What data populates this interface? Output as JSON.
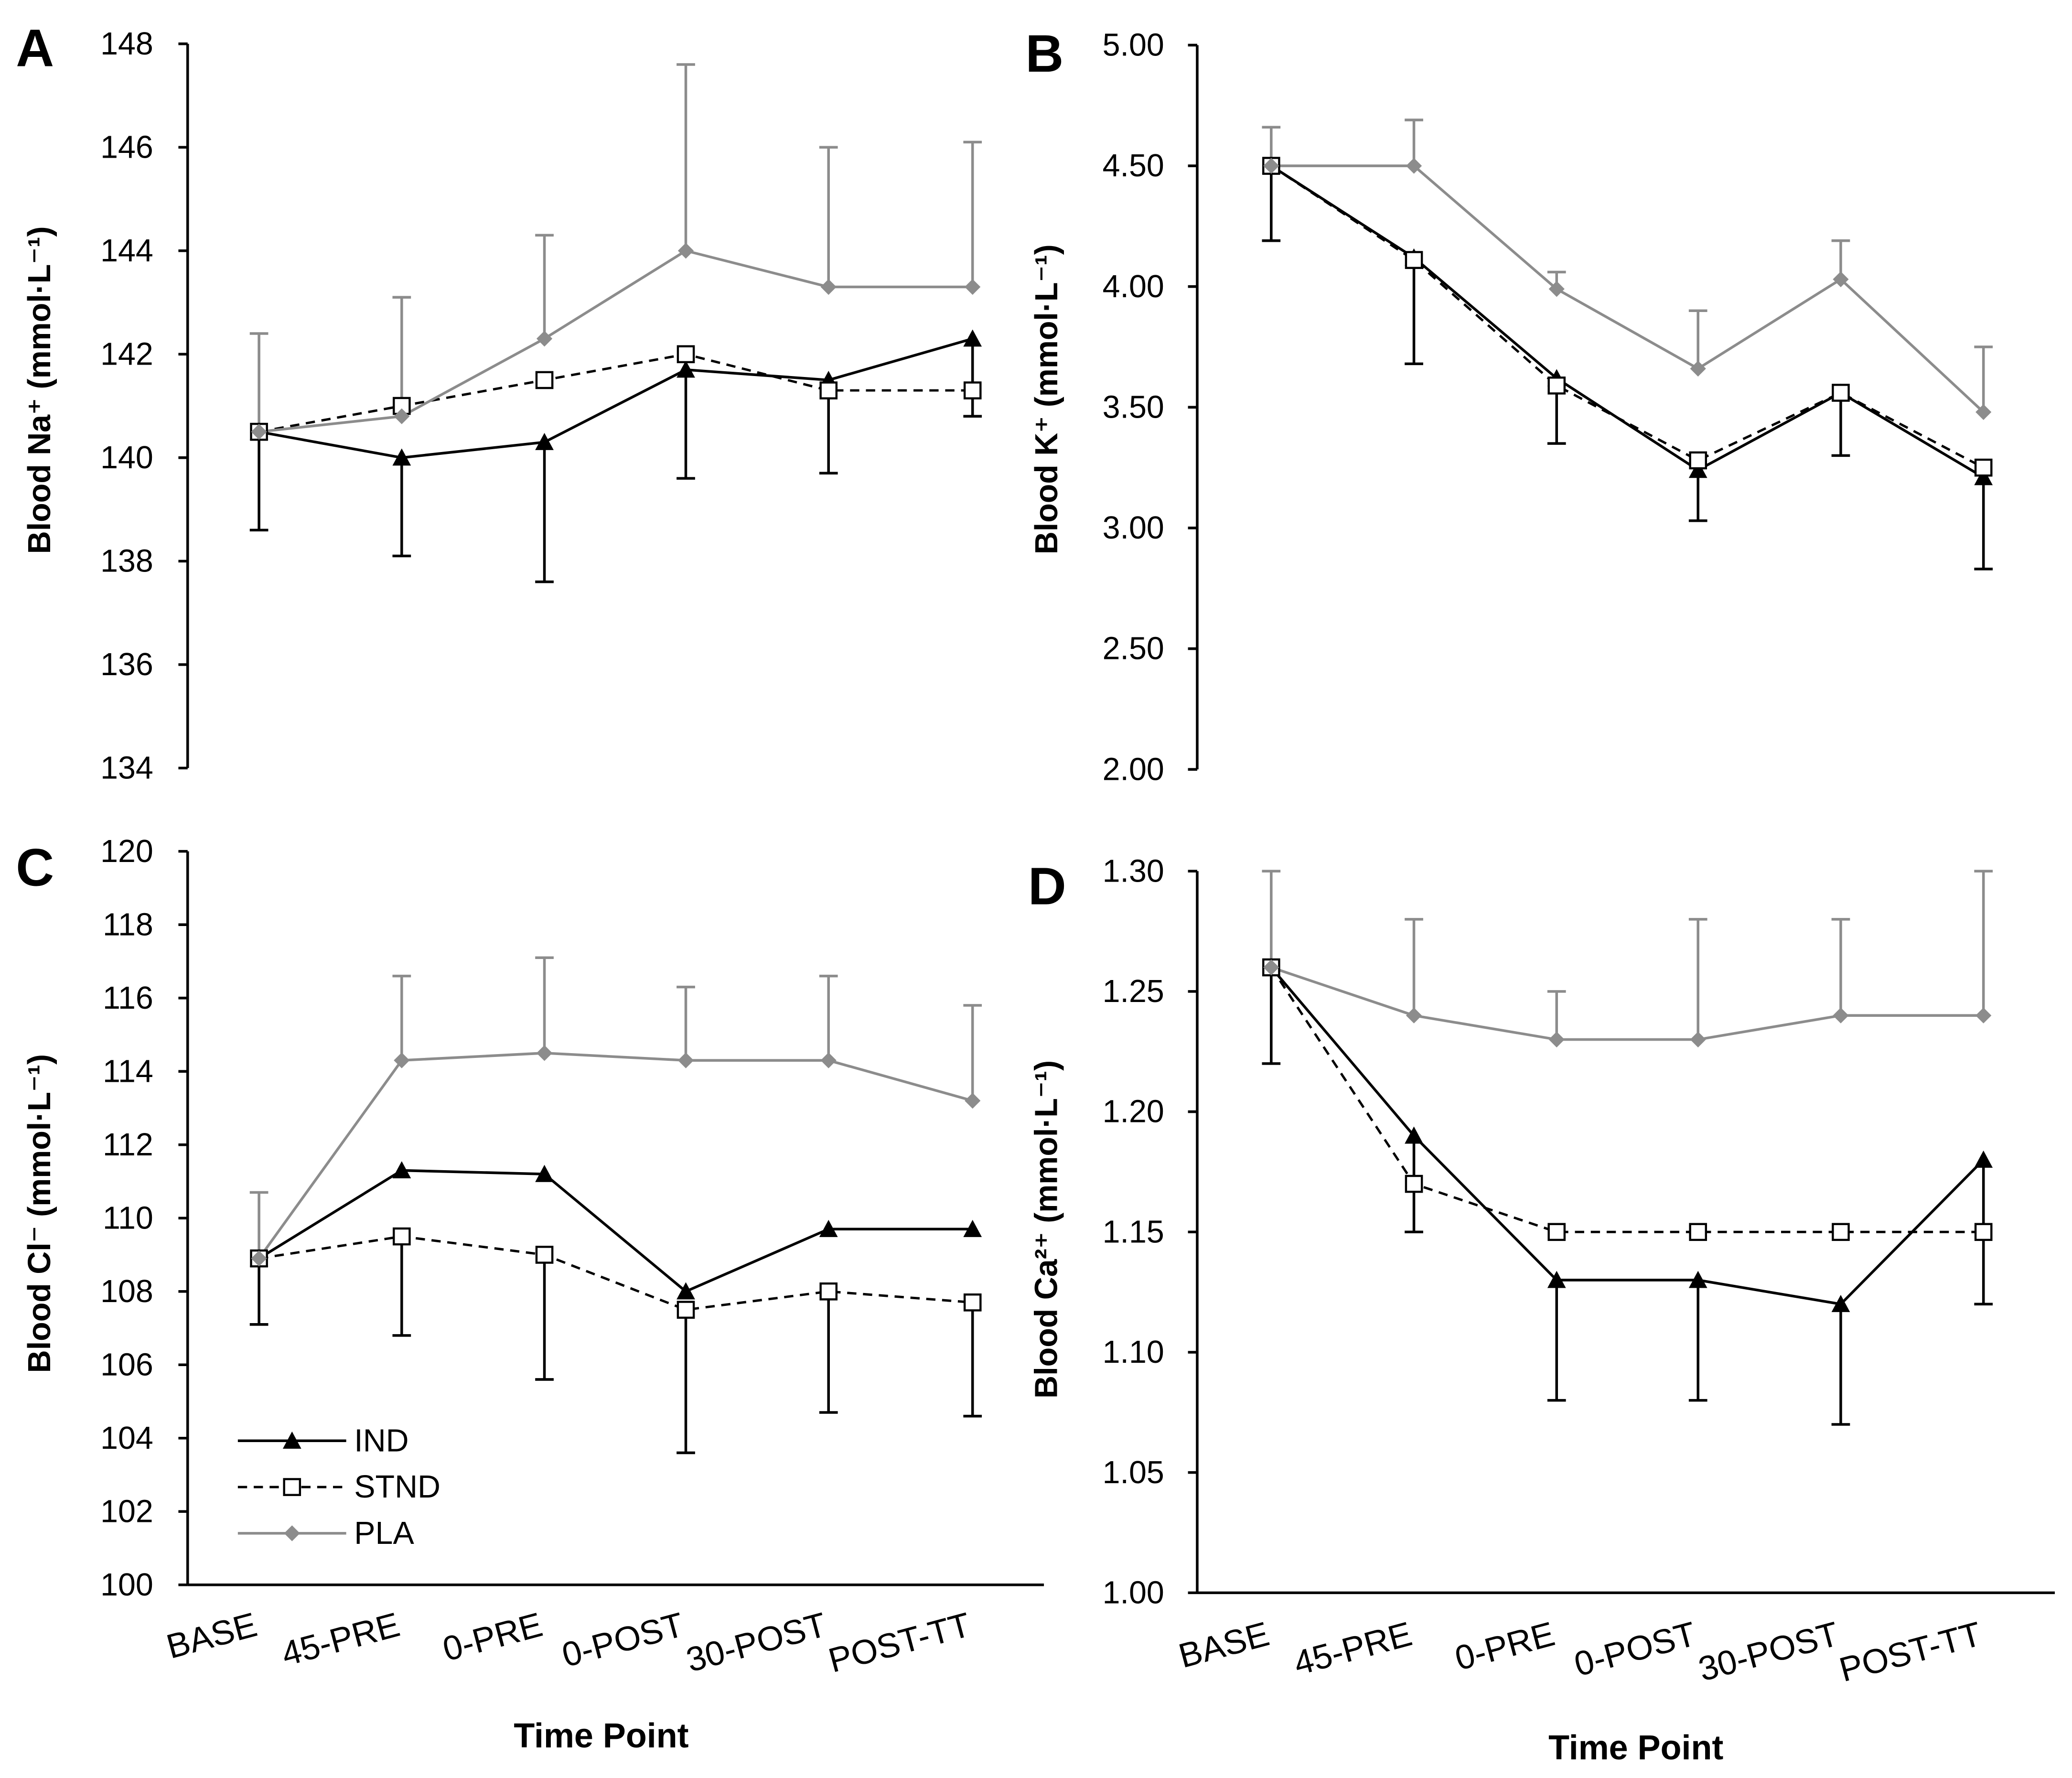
{
  "chart_data": [
    {
      "panel_label": "A",
      "type": "line",
      "ylabel": "Blood Na⁺ (mmol·L⁻¹)",
      "ylim": [
        134,
        148
      ],
      "ytick_labels": [
        "134",
        "136",
        "138",
        "140",
        "142",
        "144",
        "146",
        "148"
      ],
      "grid": false,
      "series": [
        {
          "values": [
            140.5,
            140.0,
            140.3,
            141.7,
            141.5,
            142.3
          ],
          "err_end": [
            138.6,
            138.1,
            137.6,
            139.6,
            139.7,
            140.8
          ],
          "color": "#000000"
        },
        {
          "values": [
            140.5,
            141.0,
            141.5,
            142.0,
            141.3,
            141.3
          ],
          "err_end": [
            null,
            null,
            null,
            null,
            null,
            null
          ],
          "color": "#000000"
        },
        {
          "values": [
            140.5,
            140.8,
            142.3,
            144.0,
            143.3,
            143.3
          ],
          "err_end": [
            142.4,
            143.1,
            144.3,
            147.6,
            146.0,
            146.1
          ],
          "color": "#8c8c8c"
        }
      ]
    },
    {
      "panel_label": "B",
      "type": "line",
      "ylabel": "Blood K⁺ (mmol·L⁻¹)",
      "ylim": [
        2.0,
        5.0
      ],
      "ytick_labels": [
        "2.00",
        "2.50",
        "3.00",
        "3.50",
        "4.00",
        "4.50",
        "5.00"
      ],
      "grid": false,
      "series": [
        {
          "values": [
            4.5,
            4.12,
            3.62,
            3.24,
            3.56,
            3.21
          ],
          "err_end": [
            4.19,
            3.68,
            3.35,
            3.03,
            3.3,
            2.83
          ],
          "color": "#000000"
        },
        {
          "values": [
            4.5,
            4.11,
            3.59,
            3.28,
            3.56,
            3.25
          ],
          "err_end": [
            null,
            null,
            null,
            null,
            null,
            null
          ],
          "color": "#000000"
        },
        {
          "values": [
            4.5,
            4.5,
            3.99,
            3.66,
            4.03,
            3.48
          ],
          "err_end": [
            4.66,
            4.69,
            4.06,
            3.9,
            4.19,
            3.75
          ],
          "color": "#8c8c8c"
        }
      ]
    },
    {
      "panel_label": "C",
      "type": "line",
      "ylabel": "Blood Cl⁻ (mmol·L⁻¹)",
      "xlabel": "Time Point",
      "categories": [
        "BASE",
        "45-PRE",
        "0-PRE",
        "0-POST",
        "30-POST",
        "POST-TT"
      ],
      "ylim": [
        100,
        120
      ],
      "ytick_labels": [
        "100",
        "102",
        "104",
        "106",
        "108",
        "110",
        "112",
        "114",
        "116",
        "118",
        "120"
      ],
      "grid": false,
      "legend": [
        "IND",
        "STND",
        "PLA"
      ],
      "series": [
        {
          "values": [
            108.9,
            111.3,
            111.2,
            108.0,
            109.7,
            109.7
          ],
          "err_end": [
            null,
            null,
            null,
            null,
            null,
            null
          ],
          "color": "#000000"
        },
        {
          "values": [
            108.9,
            109.5,
            109.0,
            107.5,
            108.0,
            107.7
          ],
          "err_end": [
            107.1,
            106.8,
            105.6,
            103.6,
            104.7,
            104.6
          ],
          "color": "#000000"
        },
        {
          "values": [
            108.9,
            114.3,
            114.5,
            114.3,
            114.3,
            113.2
          ],
          "err_end": [
            110.7,
            116.6,
            117.1,
            116.3,
            116.6,
            115.8
          ],
          "color": "#8c8c8c"
        }
      ]
    },
    {
      "panel_label": "D",
      "type": "line",
      "ylabel": "Blood Ca²⁺ (mmol·L⁻¹)",
      "xlabel": "Time Point",
      "categories": [
        "BASE",
        "45-PRE",
        "0-PRE",
        "0-POST",
        "30-POST",
        "POST-TT"
      ],
      "ylim": [
        1.0,
        1.3
      ],
      "ytick_labels": [
        "1.00",
        "1.05",
        "1.10",
        "1.15",
        "1.20",
        "1.25",
        "1.30"
      ],
      "grid": false,
      "series": [
        {
          "values": [
            1.26,
            1.19,
            1.13,
            1.13,
            1.12,
            1.18
          ],
          "err_end": [
            1.22,
            1.15,
            1.08,
            1.08,
            1.07,
            1.12
          ],
          "color": "#000000"
        },
        {
          "values": [
            1.26,
            1.17,
            1.15,
            1.15,
            1.15,
            1.15
          ],
          "err_end": [
            null,
            null,
            null,
            null,
            null,
            null
          ],
          "color": "#000000"
        },
        {
          "values": [
            1.26,
            1.24,
            1.23,
            1.23,
            1.24,
            1.24
          ],
          "err_end": [
            1.3,
            1.28,
            1.25,
            1.28,
            1.28,
            1.3
          ],
          "color": "#8c8c8c"
        }
      ]
    }
  ]
}
